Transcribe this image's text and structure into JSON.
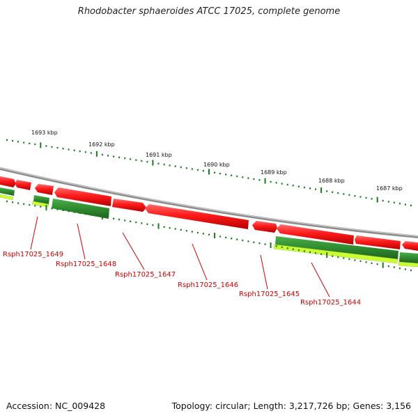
{
  "title": "Rhodobacter sphaeroides ATCC 17025, complete genome",
  "footer": {
    "accession": "Accession: NC_009428",
    "summary": "Topology: circular; Length: 3,217,726 bp; Genes: 3,156"
  },
  "scale_labels": [
    "1693 kbp",
    "1692 kbp",
    "1691 kbp",
    "1690 kbp",
    "1689 kbp",
    "1688 kbp",
    "1687 kbp"
  ],
  "gene_labels": [
    "Rsph17025_1649",
    "Rsph17025_1648",
    "Rsph17025_1647",
    "Rsph17025_1646",
    "Rsph17025_1645",
    "Rsph17025_1644"
  ],
  "colors": {
    "forward_gene": "#ff1a1a",
    "reverse_gene": "#2e8b2e",
    "gc_track": "#ccff33",
    "backbone": "#8c8c8c",
    "tick": "#1a7a1a",
    "label": "#cc0000"
  }
}
